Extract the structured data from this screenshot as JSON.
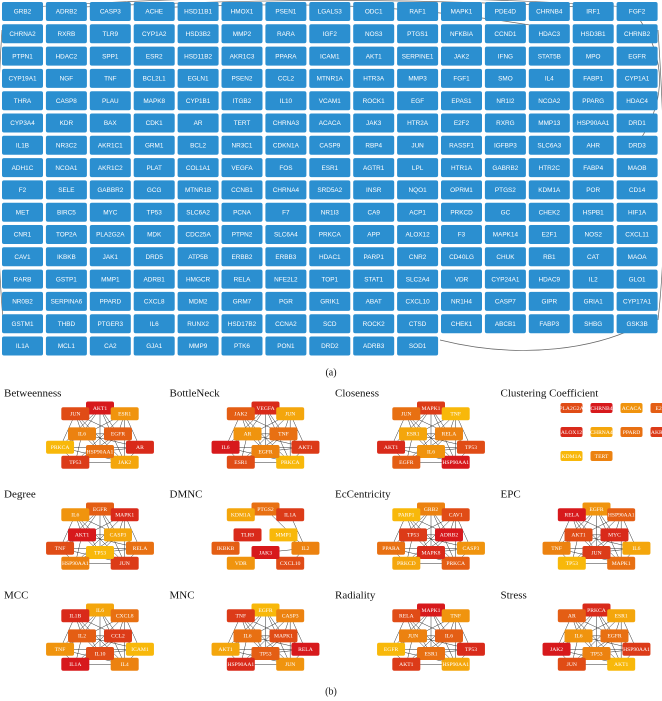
{
  "grid": {
    "color": "#2b8fd0",
    "rows": [
      [
        "GRB2",
        "ADRB2",
        "CASP3",
        "ACHE",
        "HSD11B1",
        "HMOX1",
        "PSEN1",
        "LGALS3",
        "ODC1",
        "RAF1",
        "MAPK1",
        "PDE4D",
        "CHRNB4",
        "IRF1",
        "FGF2"
      ],
      [
        "CHRNA2",
        "RXRB",
        "TLR9",
        "CYP1A2",
        "HSD3B2",
        "MMP2",
        "RARA",
        "IGF2",
        "NOS3",
        "PTGS1",
        "NFKBIA",
        "CCND1",
        "HDAC3",
        "HSD3B1",
        "CHRNB2"
      ],
      [
        "PTPN1",
        "HDAC2",
        "SPP1",
        "ESR2",
        "HSD11B2",
        "AKR1C3",
        "PPARA",
        "ICAM1",
        "AKT1",
        "SERPINE1",
        "JAK2",
        "IFNG",
        "STAT5B",
        "MPO",
        "EGFR"
      ],
      [
        "CYP19A1",
        "NGF",
        "TNF",
        "BCL2L1",
        "EGLN1",
        "PSEN2",
        "CCL2",
        "MTNR1A",
        "HTR3A",
        "MMP3",
        "FGF1",
        "SMO",
        "IL4",
        "FABP1",
        "CYP1A1"
      ],
      [
        "THRA",
        "CASP8",
        "PLAU",
        "MAPK8",
        "CYP1B1",
        "ITGB2",
        "IL10",
        "VCAM1",
        "ROCK1",
        "EGF",
        "EPAS1",
        "NR1I2",
        "NCOA2",
        "PPARG",
        "HDAC4"
      ],
      [
        "CYP3A4",
        "KDR",
        "BAX",
        "CDK1",
        "AR",
        "TERT",
        "CHRNA3",
        "ACACA",
        "JAK3",
        "HTR2A",
        "E2F2",
        "RXRG",
        "MMP13",
        "HSP90AA1",
        "DRD1"
      ],
      [
        "IL1B",
        "NR3C2",
        "AKR1C1",
        "GRM1",
        "BCL2",
        "NR3C1",
        "CDKN1A",
        "CASP9",
        "RBP4",
        "JUN",
        "RASSF1",
        "IGFBP3",
        "SLC6A3",
        "AHR",
        "DRD3"
      ],
      [
        "ADH1C",
        "NCOA1",
        "AKR1C2",
        "PLAT",
        "COL1A1",
        "VEGFA",
        "FOS",
        "ESR1",
        "AGTR1",
        "LPL",
        "HTR1A",
        "GABRB2",
        "HTR2C",
        "FABP4",
        "MAOB"
      ],
      [
        "F2",
        "SELE",
        "GABBR2",
        "GCG",
        "MTNR1B",
        "CCNB1",
        "CHRNA4",
        "SRD5A2",
        "INSR",
        "NQO1",
        "OPRM1",
        "PTGS2",
        "KDM1A",
        "POR",
        "CD14"
      ],
      [
        "MET",
        "BIRC5",
        "MYC",
        "TP53",
        "SLC6A2",
        "PCNA",
        "F7",
        "NR1I3",
        "CA9",
        "ACP1",
        "PRKCD",
        "GC",
        "CHEK2",
        "HSPB1",
        "HIF1A"
      ],
      [
        "CNR1",
        "TOP2A",
        "PLA2G2A",
        "MDK",
        "CDC25A",
        "PTPN2",
        "SLC6A4",
        "PRKCA",
        "APP",
        "ALOX12",
        "F3",
        "MAPK14",
        "E2F1",
        "NOS2",
        "CXCL11"
      ],
      [
        "CAV1",
        "IKBKB",
        "JAK1",
        "DRD5",
        "ATP5B",
        "ERBB2",
        "ERBB3",
        "HDAC1",
        "PARP1",
        "CNR2",
        "CD40LG",
        "CHUK",
        "RB1",
        "CAT",
        "MAOA"
      ],
      [
        "RARB",
        "GSTP1",
        "MMP1",
        "ADRB1",
        "HMGCR",
        "RELA",
        "NFE2L2",
        "TOP1",
        "STAT1",
        "SLC2A4",
        "VDR",
        "CYP24A1",
        "HDAC9",
        "IL2",
        "GLO1"
      ],
      [
        "NR0B2",
        "SERPINA6",
        "PPARD",
        "CXCL8",
        "MDM2",
        "GRM7",
        "PGR",
        "GRIK1",
        "ABAT",
        "CXCL10",
        "NR1H4",
        "CASP7",
        "GIPR",
        "GRIA1",
        "CYP17A1"
      ],
      [
        "GSTM1",
        "THBD",
        "PTGER3",
        "IL6",
        "RUNX2",
        "HSD17B2",
        "CCNA2",
        "SCD",
        "ROCK2",
        "CTSD",
        "CHEK1",
        "ABCB1",
        "FABP3",
        "SHBG",
        "GSK3B"
      ],
      [
        "IL1A",
        "MCL1",
        "CA2",
        "GJA1",
        "MMP9",
        "PTK6",
        "PON1",
        "DRD2",
        "ADRB3",
        "SOD1"
      ]
    ]
  },
  "caption_a": "(a)",
  "palette": [
    "#d7191c",
    "#d92a1a",
    "#dc3b18",
    "#e04c16",
    "#e45e14",
    "#e87012",
    "#ec8210",
    "#f0940e",
    "#f4a60c",
    "#f8b80a"
  ],
  "panels": [
    {
      "title": "Betweenness",
      "nodes": [
        "AKT1",
        "ESR1",
        "EGFR",
        "AR",
        "JAK2",
        "HSP90AA1",
        "TP53",
        "PRKCA",
        "IL6",
        "JUN"
      ]
    },
    {
      "title": "BottleNeck",
      "nodes": [
        "VEGFA",
        "JUN",
        "TNF",
        "AKT1",
        "PRKCA",
        "EGFR",
        "ESR1",
        "IL6",
        "AR",
        "JAK2"
      ]
    },
    {
      "title": "Closeness",
      "nodes": [
        "MAPK1",
        "TNF",
        "RELA",
        "TP53",
        "HSP90AA1",
        "IL6",
        "EGFR",
        "AKT1",
        "ESR1",
        "JUN"
      ]
    },
    {
      "title": "Clustering Coefficient",
      "nodes": [
        "PLA2G2A",
        "CHRNB4",
        "ACACA",
        "E2F1",
        "ALOX12",
        "CHRNA4",
        "PPARD",
        "AKR1C2",
        "KDM1A",
        "TERT"
      ]
    },
    {
      "title": "Degree",
      "nodes": [
        "EGFR",
        "MAPK1",
        "CASP3",
        "RELA",
        "JUN",
        "TP53",
        "HSP90AA1",
        "TNF",
        "AKT1",
        "IL6"
      ]
    },
    {
      "title": "DMNC",
      "nodes": [
        "PTGS2",
        "IL1A",
        "MMP1",
        "IL2",
        "CXCL10",
        "JAK3",
        "VDR",
        "IKBKB",
        "TLR9",
        "KDM1A"
      ]
    },
    {
      "title": "EcCentricity",
      "nodes": [
        "GRB2",
        "CAV1",
        "ADRB2",
        "CASP3",
        "PRKCA",
        "MAPK8",
        "PRKCD",
        "PPARA",
        "TP53",
        "PARP1"
      ]
    },
    {
      "title": "EPC",
      "nodes": [
        "EGFR",
        "HSP90AA1",
        "MYC",
        "IL6",
        "MAPK1",
        "JUN",
        "TP53",
        "TNF",
        "AKT1",
        "RELA"
      ]
    },
    {
      "title": "MCC",
      "nodes": [
        "IL6",
        "CXCL8",
        "CCL2",
        "ICAM1",
        "IL4",
        "IL10",
        "IL1A",
        "TNF",
        "IL2",
        "IL1B"
      ]
    },
    {
      "title": "MNC",
      "nodes": [
        "EGFR",
        "CASP3",
        "MAPK1",
        "RELA",
        "JUN",
        "TP53",
        "HSP90AA1",
        "AKT1",
        "IL6",
        "TNF"
      ]
    },
    {
      "title": "Radiality",
      "nodes": [
        "MAPK1",
        "TNF",
        "IL6",
        "TP53",
        "HSP90AA1",
        "ESR1",
        "AKT1",
        "EGFR",
        "JUN",
        "RELA"
      ]
    },
    {
      "title": "Stress",
      "nodes": [
        "PRKCA",
        "ESR1",
        "EGFR",
        "HSP90AA1",
        "AKT1",
        "TP53",
        "JUN",
        "JAK2",
        "IL6",
        "AR"
      ]
    }
  ],
  "caption_b": "(b)"
}
